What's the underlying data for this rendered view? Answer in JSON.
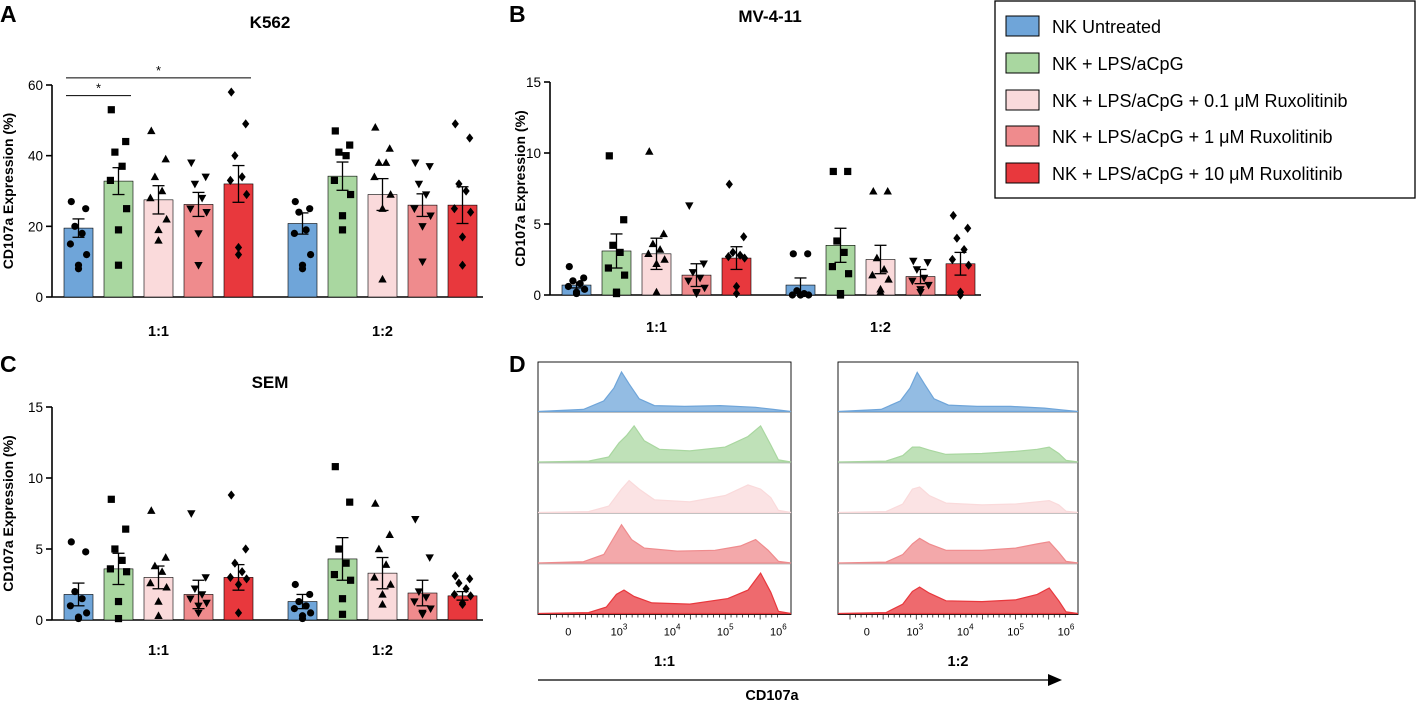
{
  "panels": {
    "A": "A",
    "B": "B",
    "C": "C",
    "D": "D"
  },
  "legend": [
    {
      "label": "NK Untreated",
      "color": "#6fa5d9"
    },
    {
      "label": "NK + LPS/aCpG",
      "color": "#a9d7a0"
    },
    {
      "label": "NK + LPS/aCpG + 0.1 μM Ruxolitinib",
      "color": "#fadadb"
    },
    {
      "label": "NK + LPS/aCpG + 1 μM Ruxolitinib",
      "color": "#ef8b8d"
    },
    {
      "label": "NK + LPS/aCpG + 10 μM Ruxolitinib",
      "color": "#e8383d"
    }
  ],
  "chart_data": [
    {
      "type": "bar",
      "panel": "A",
      "title": "K562",
      "ylabel": "CD107a Expression (%)",
      "ylim": [
        0,
        60
      ],
      "yticks": [
        0,
        20,
        40,
        60
      ],
      "groups": [
        "1:1",
        "1:2"
      ],
      "series": [
        {
          "name": "NK Untreated",
          "values": [
            19.5,
            20.8
          ],
          "sem": [
            2.6,
            3.0
          ],
          "points": [
            [
              27,
              25,
              20,
              18,
              15,
              12,
              9,
              8
            ],
            [
              27,
              25,
              24,
              19,
              18,
              12,
              9,
              8
            ]
          ]
        },
        {
          "name": "NK + LPS/aCpG",
          "values": [
            32.8,
            34.2
          ],
          "sem": [
            3.8,
            4.0
          ],
          "points": [
            [
              53,
              44,
              41,
              37,
              33,
              25,
              19,
              9
            ],
            [
              47,
              43,
              41,
              40,
              33,
              29,
              23,
              19
            ]
          ]
        },
        {
          "name": "NK + LPS/aCpG + 0.1 μM Ruxolitinib",
          "values": [
            27.5,
            29.0
          ],
          "sem": [
            4.0,
            4.5
          ],
          "points": [
            [
              47,
              39,
              34,
              30,
              28,
              22,
              19,
              16
            ],
            [
              48,
              42,
              38,
              38,
              34,
              29,
              25,
              5
            ]
          ]
        },
        {
          "name": "NK + LPS/aCpG + 1 μM Ruxolitinib",
          "values": [
            26.2,
            26.0
          ],
          "sem": [
            3.4,
            3.2
          ],
          "points": [
            [
              38,
              34,
              32,
              28,
              25,
              24,
              18,
              9
            ],
            [
              38,
              37,
              32,
              29,
              25,
              23,
              20,
              10
            ]
          ]
        },
        {
          "name": "NK + LPS/aCpG + 10 μM Ruxolitinib",
          "values": [
            32.0,
            26.0
          ],
          "sem": [
            5.2,
            5.2
          ],
          "points": [
            [
              58,
              49,
              40,
              34,
              33,
              29,
              14,
              12
            ],
            [
              49,
              45,
              32,
              30,
              25,
              24,
              17,
              9
            ]
          ]
        }
      ],
      "significance": [
        {
          "from": 0,
          "to": 1,
          "label": "*",
          "y": 57
        },
        {
          "from": 0,
          "to": 4,
          "label": "*",
          "y": 62
        }
      ]
    },
    {
      "type": "bar",
      "panel": "B",
      "title": "MV-4-11",
      "ylabel": "CD107a Expression (%)",
      "ylim": [
        0,
        15
      ],
      "yticks": [
        0,
        5,
        10,
        15
      ],
      "groups": [
        "1:1",
        "1:2"
      ],
      "series": [
        {
          "name": "NK Untreated",
          "values": [
            0.7,
            0.7
          ],
          "sem": [
            0.2,
            0.5
          ],
          "points": [
            [
              2.0,
              1.2,
              1.0,
              0.8,
              0.6,
              0.4,
              0.2,
              0.1
            ],
            [
              2.9,
              2.9,
              0.3,
              0.1,
              0.0,
              0.0,
              0.0,
              0.0
            ]
          ]
        },
        {
          "name": "NK + LPS/aCpG",
          "values": [
            3.1,
            3.5
          ],
          "sem": [
            1.2,
            1.2
          ],
          "points": [
            [
              9.8,
              5.3,
              3.5,
              3.0,
              1.9,
              1.4,
              0.2,
              0.1
            ],
            [
              8.7,
              8.7,
              3.8,
              3.0,
              2.0,
              1.5,
              0.1,
              0.0
            ]
          ]
        },
        {
          "name": "NK + LPS/aCpG + 0.1 μM Ruxolitinib",
          "values": [
            2.9,
            2.5
          ],
          "sem": [
            1.1,
            1.0
          ],
          "points": [
            [
              10.1,
              4.3,
              3.6,
              3.2,
              2.9,
              2.5,
              2.2,
              0.2
            ],
            [
              7.3,
              7.3,
              2.6,
              1.8,
              1.4,
              1.1,
              0.4,
              0.2
            ]
          ]
        },
        {
          "name": "NK + LPS/aCpG + 1 μM Ruxolitinib",
          "values": [
            1.4,
            1.3
          ],
          "sem": [
            0.8,
            0.5
          ],
          "points": [
            [
              6.3,
              2.2,
              1.6,
              1.2,
              1.0,
              0.5,
              0.2,
              0.1
            ],
            [
              2.4,
              2.3,
              1.8,
              1.2,
              1.0,
              0.7,
              0.4,
              0.2
            ]
          ]
        },
        {
          "name": "NK + LPS/aCpG + 10 μM Ruxolitinib",
          "values": [
            2.6,
            2.2
          ],
          "sem": [
            0.8,
            0.8
          ],
          "points": [
            [
              7.8,
              4.1,
              3.0,
              2.8,
              2.7,
              2.6,
              0.6,
              0.1
            ],
            [
              5.6,
              4.7,
              4.0,
              3.2,
              2.5,
              2.1,
              0.2,
              0.0
            ]
          ]
        }
      ],
      "significance": []
    },
    {
      "type": "bar",
      "panel": "C",
      "title": "SEM",
      "ylabel": "CD107a Expression (%)",
      "ylim": [
        0,
        15
      ],
      "yticks": [
        0,
        5,
        10,
        15
      ],
      "groups": [
        "1:1",
        "1:2"
      ],
      "series": [
        {
          "name": "NK Untreated",
          "values": [
            1.8,
            1.3
          ],
          "sem": [
            0.8,
            0.5
          ],
          "points": [
            [
              5.5,
              4.8,
              2.0,
              1.5,
              1.0,
              0.5,
              0.2,
              0.1
            ],
            [
              2.5,
              1.8,
              1.3,
              1.0,
              0.8,
              0.5,
              0.3,
              0.1
            ]
          ]
        },
        {
          "name": "NK + LPS/aCpG",
          "values": [
            3.6,
            4.3
          ],
          "sem": [
            1.1,
            1.5
          ],
          "points": [
            [
              8.5,
              6.4,
              5.0,
              4.2,
              3.6,
              3.4,
              1.3,
              0.1
            ],
            [
              10.8,
              8.3,
              5.0,
              4.0,
              3.2,
              2.8,
              1.5,
              0.4
            ]
          ]
        },
        {
          "name": "NK + LPS/aCpG + 0.1 μM Ruxolitinib",
          "values": [
            3.0,
            3.3
          ],
          "sem": [
            0.8,
            1.1
          ],
          "points": [
            [
              7.7,
              4.4,
              3.8,
              3.4,
              2.6,
              2.3,
              1.3,
              0.3
            ],
            [
              8.2,
              6.0,
              5.0,
              3.9,
              3.0,
              2.5,
              1.8,
              1.1
            ]
          ]
        },
        {
          "name": "NK + LPS/aCpG + 1 μM Ruxolitinib",
          "values": [
            1.8,
            1.9
          ],
          "sem": [
            1.0,
            0.9
          ],
          "points": [
            [
              7.5,
              3.0,
              2.2,
              1.8,
              1.5,
              1.2,
              1.0,
              0.5
            ],
            [
              7.1,
              4.4,
              2.0,
              1.6,
              1.3,
              0.8,
              0.5,
              0.4
            ]
          ]
        },
        {
          "name": "NK + LPS/aCpG + 10 μM Ruxolitinib",
          "values": [
            3.0,
            1.7
          ],
          "sem": [
            0.9,
            0.3
          ],
          "points": [
            [
              8.8,
              5.0,
              4.0,
              3.4,
              3.0,
              2.9,
              2.5,
              0.5
            ],
            [
              3.1,
              2.9,
              2.6,
              2.2,
              1.8,
              1.7,
              1.2,
              1.1
            ]
          ]
        }
      ],
      "significance": []
    }
  ],
  "histograms": {
    "xlabel": "CD107a",
    "conditions": [
      "1:1",
      "1:2"
    ],
    "ticks": [
      {
        "base": "0",
        "exp": ""
      },
      {
        "base": "10",
        "exp": "3"
      },
      {
        "base": "10",
        "exp": "4"
      },
      {
        "base": "10",
        "exp": "5"
      },
      {
        "base": "10",
        "exp": "6"
      }
    ],
    "profiles": {
      "1:1": [
        [
          [
            0,
            0
          ],
          [
            0.18,
            0.05
          ],
          [
            0.26,
            0.25
          ],
          [
            0.3,
            0.55
          ],
          [
            0.33,
            0.93
          ],
          [
            0.36,
            0.65
          ],
          [
            0.4,
            0.3
          ],
          [
            0.46,
            0.14
          ],
          [
            0.58,
            0.12
          ],
          [
            0.72,
            0.14
          ],
          [
            0.86,
            0.1
          ],
          [
            0.93,
            0.05
          ],
          [
            1,
            0
          ]
        ],
        [
          [
            0,
            0
          ],
          [
            0.2,
            0.02
          ],
          [
            0.28,
            0.12
          ],
          [
            0.32,
            0.45
          ],
          [
            0.35,
            0.62
          ],
          [
            0.38,
            0.85
          ],
          [
            0.42,
            0.5
          ],
          [
            0.48,
            0.3
          ],
          [
            0.6,
            0.26
          ],
          [
            0.74,
            0.35
          ],
          [
            0.83,
            0.6
          ],
          [
            0.88,
            0.85
          ],
          [
            0.92,
            0.4
          ],
          [
            0.95,
            0.05
          ],
          [
            1,
            0
          ]
        ],
        [
          [
            0,
            0
          ],
          [
            0.2,
            0.02
          ],
          [
            0.28,
            0.15
          ],
          [
            0.33,
            0.55
          ],
          [
            0.36,
            0.75
          ],
          [
            0.4,
            0.55
          ],
          [
            0.46,
            0.3
          ],
          [
            0.6,
            0.25
          ],
          [
            0.74,
            0.4
          ],
          [
            0.83,
            0.65
          ],
          [
            0.88,
            0.55
          ],
          [
            0.92,
            0.35
          ],
          [
            0.95,
            0.05
          ],
          [
            1,
            0
          ]
        ],
        [
          [
            0,
            0
          ],
          [
            0.18,
            0.03
          ],
          [
            0.26,
            0.2
          ],
          [
            0.3,
            0.6
          ],
          [
            0.33,
            0.9
          ],
          [
            0.37,
            0.55
          ],
          [
            0.42,
            0.35
          ],
          [
            0.55,
            0.28
          ],
          [
            0.7,
            0.3
          ],
          [
            0.8,
            0.4
          ],
          [
            0.86,
            0.55
          ],
          [
            0.91,
            0.3
          ],
          [
            0.95,
            0.04
          ],
          [
            1,
            0
          ]
        ],
        [
          [
            0,
            0
          ],
          [
            0.2,
            0.02
          ],
          [
            0.27,
            0.15
          ],
          [
            0.31,
            0.45
          ],
          [
            0.34,
            0.55
          ],
          [
            0.38,
            0.4
          ],
          [
            0.45,
            0.25
          ],
          [
            0.6,
            0.22
          ],
          [
            0.75,
            0.35
          ],
          [
            0.83,
            0.55
          ],
          [
            0.88,
            0.95
          ],
          [
            0.92,
            0.5
          ],
          [
            0.95,
            0.05
          ],
          [
            1,
            0
          ]
        ]
      ],
      "1:2": [
        [
          [
            0,
            0
          ],
          [
            0.18,
            0.05
          ],
          [
            0.26,
            0.25
          ],
          [
            0.3,
            0.55
          ],
          [
            0.33,
            0.92
          ],
          [
            0.36,
            0.65
          ],
          [
            0.4,
            0.3
          ],
          [
            0.46,
            0.15
          ],
          [
            0.58,
            0.12
          ],
          [
            0.72,
            0.12
          ],
          [
            0.86,
            0.08
          ],
          [
            0.93,
            0.04
          ],
          [
            1,
            0
          ]
        ],
        [
          [
            0,
            0
          ],
          [
            0.2,
            0.02
          ],
          [
            0.27,
            0.15
          ],
          [
            0.31,
            0.35
          ],
          [
            0.34,
            0.35
          ],
          [
            0.38,
            0.28
          ],
          [
            0.45,
            0.18
          ],
          [
            0.6,
            0.2
          ],
          [
            0.74,
            0.25
          ],
          [
            0.83,
            0.3
          ],
          [
            0.88,
            0.35
          ],
          [
            0.92,
            0.2
          ],
          [
            0.95,
            0.04
          ],
          [
            1,
            0
          ]
        ],
        [
          [
            0,
            0
          ],
          [
            0.2,
            0.02
          ],
          [
            0.27,
            0.2
          ],
          [
            0.31,
            0.55
          ],
          [
            0.34,
            0.6
          ],
          [
            0.38,
            0.4
          ],
          [
            0.45,
            0.22
          ],
          [
            0.6,
            0.18
          ],
          [
            0.74,
            0.2
          ],
          [
            0.83,
            0.25
          ],
          [
            0.88,
            0.28
          ],
          [
            0.92,
            0.18
          ],
          [
            0.95,
            0.03
          ],
          [
            1,
            0
          ]
        ],
        [
          [
            0,
            0
          ],
          [
            0.2,
            0.02
          ],
          [
            0.27,
            0.2
          ],
          [
            0.31,
            0.45
          ],
          [
            0.34,
            0.58
          ],
          [
            0.38,
            0.45
          ],
          [
            0.45,
            0.3
          ],
          [
            0.6,
            0.3
          ],
          [
            0.74,
            0.35
          ],
          [
            0.83,
            0.45
          ],
          [
            0.88,
            0.5
          ],
          [
            0.92,
            0.25
          ],
          [
            0.95,
            0.04
          ],
          [
            1,
            0
          ]
        ],
        [
          [
            0,
            0
          ],
          [
            0.2,
            0.02
          ],
          [
            0.27,
            0.22
          ],
          [
            0.31,
            0.52
          ],
          [
            0.34,
            0.62
          ],
          [
            0.38,
            0.48
          ],
          [
            0.45,
            0.3
          ],
          [
            0.6,
            0.28
          ],
          [
            0.74,
            0.32
          ],
          [
            0.83,
            0.45
          ],
          [
            0.88,
            0.6
          ],
          [
            0.92,
            0.3
          ],
          [
            0.95,
            0.04
          ],
          [
            1,
            0
          ]
        ]
      ]
    }
  }
}
